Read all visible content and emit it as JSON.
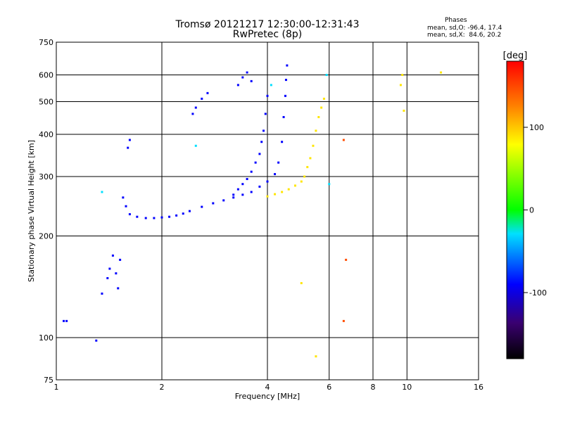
{
  "header": {
    "title_line1": "Tromsø 20121217 12:30:00-12:31:43",
    "title_line2": "RwPretec (8p)",
    "stats_title": "Phases",
    "stats_o": "mean, sd,O: -96.4, 17.4",
    "stats_x": "mean, sd,X:  84.6, 20.2"
  },
  "chart_data": {
    "type": "scatter",
    "title": "Tromsø 20121217 12:30:00-12:31:43",
    "subtitle": "RwPretec (8p)",
    "xlabel": "Frequency [MHz]",
    "ylabel": "Stationary phase Virtual Height [km]",
    "xscale": "log",
    "yscale": "log",
    "xlim": [
      1,
      16
    ],
    "ylim": [
      75,
      750
    ],
    "x_ticks": [
      1,
      2,
      4,
      6,
      8,
      10,
      16
    ],
    "x_tick_labels": [
      "1",
      "2",
      "4",
      "6",
      "8",
      "10",
      "16"
    ],
    "y_ticks": [
      75,
      100,
      200,
      300,
      400,
      500,
      600,
      750
    ],
    "y_tick_labels": [
      "75",
      "100",
      "200",
      "300",
      "400",
      "500",
      "600",
      "750"
    ],
    "grid": true,
    "colorbar": {
      "label": "[deg]",
      "range": [
        -180,
        180
      ],
      "ticks": [
        100,
        0,
        -100
      ],
      "tick_labels": [
        "100",
        "0",
        "-100"
      ]
    },
    "series": [
      {
        "phase_deg": -100,
        "x": [
          1.05,
          1.07,
          1.3,
          1.35,
          1.4,
          1.42,
          1.45,
          1.48,
          1.5,
          1.52,
          1.55,
          1.58,
          1.62,
          1.7,
          1.8,
          1.9,
          2.0,
          2.1,
          2.2,
          2.3,
          2.4,
          2.6,
          2.8,
          3.0,
          3.2,
          3.4,
          3.6,
          3.8,
          4.0,
          4.2,
          4.3,
          4.4,
          4.45,
          4.5,
          4.52,
          4.55
        ],
        "y": [
          112,
          112,
          98,
          135,
          150,
          160,
          175,
          155,
          140,
          170,
          260,
          245,
          232,
          228,
          226,
          226,
          227,
          228,
          230,
          233,
          237,
          244,
          250,
          255,
          260,
          265,
          270,
          280,
          290,
          305,
          330,
          380,
          450,
          520,
          580,
          640
        ]
      },
      {
        "phase_deg": -100,
        "x": [
          3.2,
          3.3,
          3.4,
          3.5,
          3.6,
          3.7,
          3.8,
          3.85,
          3.9,
          3.95,
          4.0
        ],
        "y": [
          265,
          275,
          285,
          295,
          310,
          330,
          350,
          380,
          410,
          460,
          520
        ]
      },
      {
        "phase_deg": -100,
        "x": [
          1.6,
          1.62,
          2.45,
          2.5,
          2.6,
          2.7,
          3.3,
          3.4,
          3.5,
          3.6
        ],
        "y": [
          365,
          385,
          460,
          480,
          510,
          530,
          560,
          590,
          610,
          575
        ]
      },
      {
        "phase_deg": 90,
        "x": [
          4.0,
          4.2,
          4.4,
          4.6,
          4.8,
          5.0,
          5.1,
          5.2,
          5.3,
          5.4,
          5.5,
          5.6,
          5.7,
          5.8
        ],
        "y": [
          262,
          266,
          270,
          275,
          282,
          290,
          300,
          320,
          340,
          370,
          410,
          450,
          480,
          510
        ]
      },
      {
        "phase_deg": 90,
        "x": [
          5.0,
          5.5,
          9.6,
          9.7,
          9.8,
          12.5
        ],
        "y": [
          145,
          88,
          560,
          600,
          470,
          610
        ]
      },
      {
        "phase_deg": 150,
        "x": [
          6.6,
          6.7,
          6.6
        ],
        "y": [
          385,
          170,
          112
        ]
      },
      {
        "phase_deg": -40,
        "x": [
          1.35,
          2.5,
          4.1,
          5.9,
          6.0
        ],
        "y": [
          270,
          370,
          560,
          600,
          285
        ]
      }
    ]
  }
}
